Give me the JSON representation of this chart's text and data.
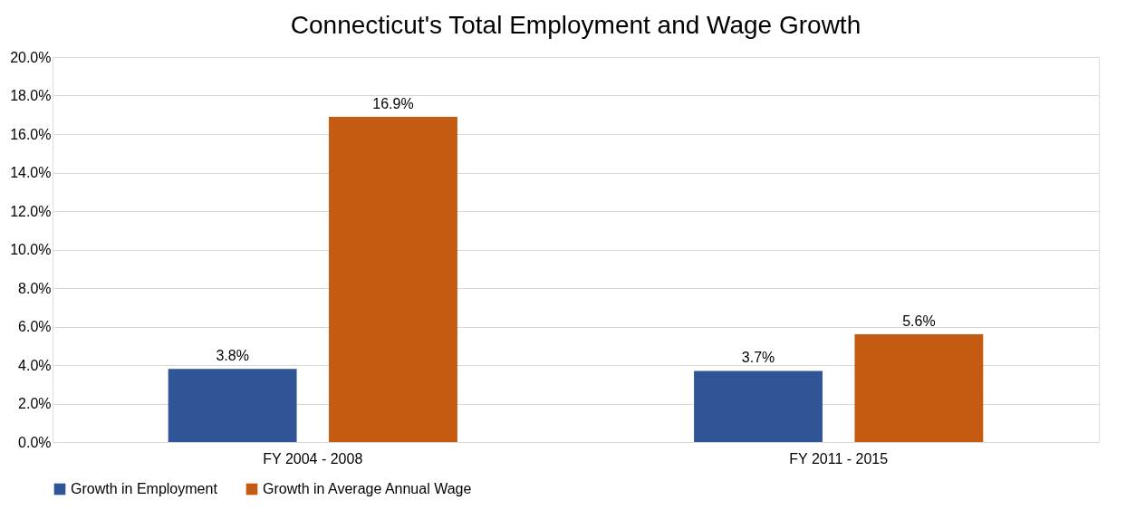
{
  "chart_data": {
    "type": "bar",
    "title": "Connecticut's Total Employment and Wage Growth",
    "categories": [
      "FY 2004 - 2008",
      "FY 2011 - 2015"
    ],
    "series": [
      {
        "name": "Growth in Employment",
        "color": "#2f5597",
        "values": [
          3.8,
          3.7
        ],
        "value_labels": [
          "3.8%",
          "3.7%"
        ]
      },
      {
        "name": "Growth in Average Annual Wage",
        "color": "#c55a11",
        "values": [
          16.9,
          5.6
        ],
        "value_labels": [
          "16.9%",
          "5.6%"
        ]
      }
    ],
    "ylim": [
      0,
      20
    ],
    "yticks": [
      {
        "value": 0,
        "label": "0.0%"
      },
      {
        "value": 2,
        "label": "2.0%"
      },
      {
        "value": 4,
        "label": "4.0%"
      },
      {
        "value": 6,
        "label": "6.0%"
      },
      {
        "value": 8,
        "label": "8.0%"
      },
      {
        "value": 10,
        "label": "10.0%"
      },
      {
        "value": 12,
        "label": "12.0%"
      },
      {
        "value": 14,
        "label": "14.0%"
      },
      {
        "value": 16,
        "label": "16.0%"
      },
      {
        "value": 18,
        "label": "18.0%"
      },
      {
        "value": 20,
        "label": "20.0%"
      }
    ],
    "grid": "y",
    "legend": "bottom"
  }
}
